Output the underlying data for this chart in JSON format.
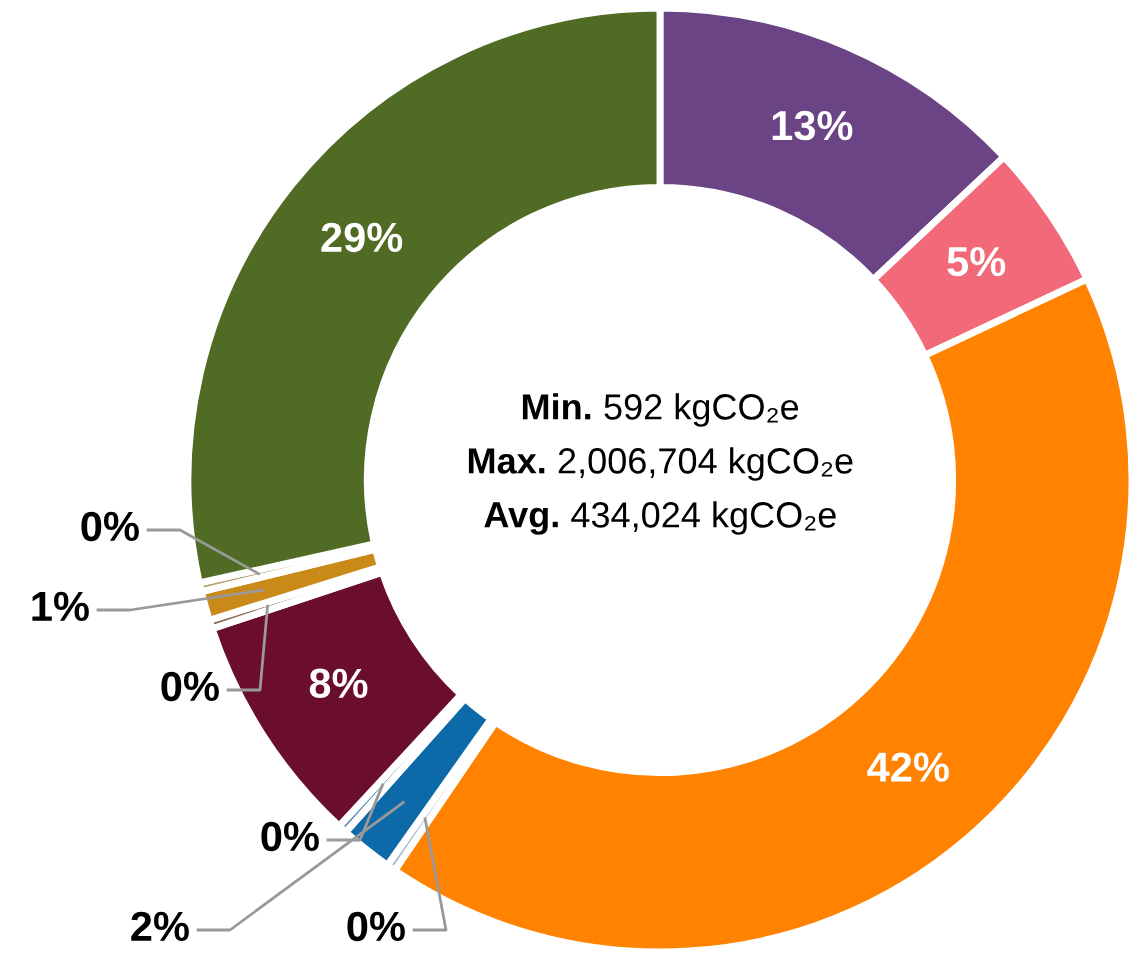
{
  "chart_data": {
    "type": "donut",
    "categories": [
      null,
      null,
      null,
      null,
      null,
      null,
      null,
      null,
      null,
      null,
      null
    ],
    "values": [
      13,
      5,
      41.5,
      0.3,
      1.8,
      0.3,
      8,
      0.3,
      1,
      0.3,
      28.5
    ],
    "value_labels": [
      "13%",
      "5%",
      "42%",
      "0%",
      "2%",
      "0%",
      "8%",
      "0%",
      "1%",
      "0%",
      "29%"
    ],
    "colors": [
      "#6a4485",
      "#f26a7a",
      "#ff8200",
      "#9fb8c9",
      "#0d6aa8",
      "#5b8fb9",
      "#6b0d2e",
      "#8c6d4f",
      "#c98a1a",
      "#b8a070",
      "#4f6b24"
    ],
    "annotations": [
      "Min. 592 kgCO₂e",
      "Max. 2,006,704 kgCO₂e",
      "Avg. 434,024 kgCO₂e"
    ]
  }
}
